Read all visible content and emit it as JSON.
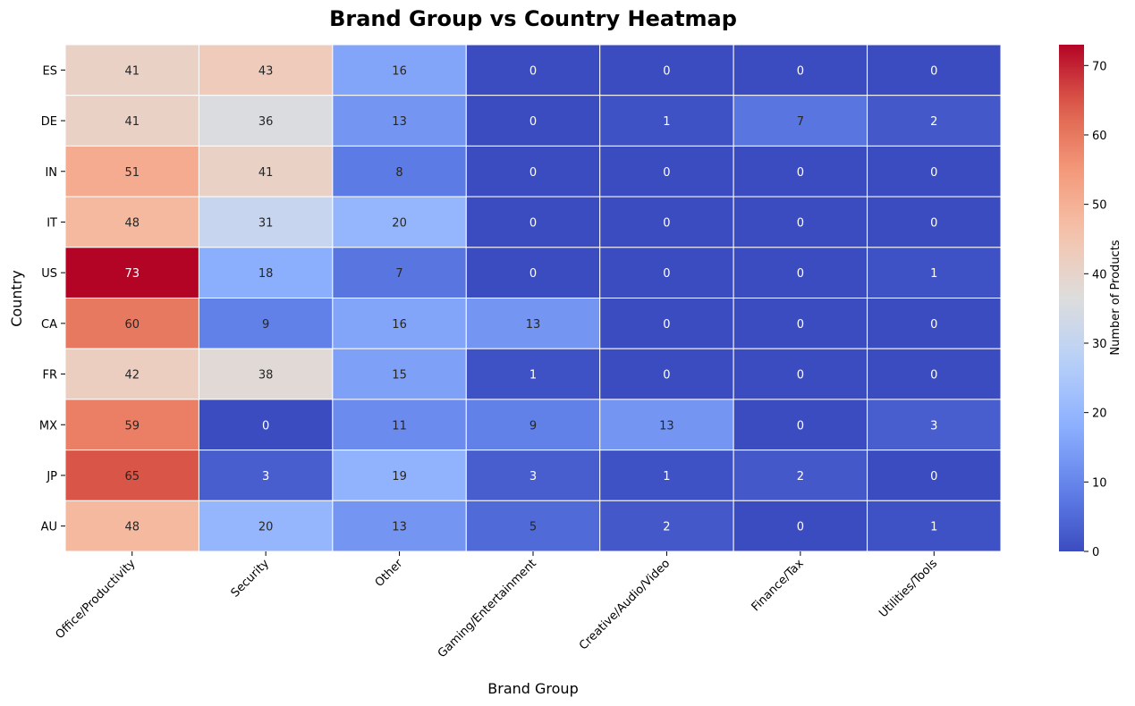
{
  "chart_data": {
    "type": "heatmap",
    "title": "Brand Group vs Country Heatmap",
    "xlabel": "Brand Group",
    "ylabel": "Country",
    "x_categories": [
      "Office/Productivity",
      "Security",
      "Other",
      "Gaming/Entertainment",
      "Creative/Audio/Video",
      "Finance/Tax",
      "Utilities/Tools"
    ],
    "y_categories": [
      "ES",
      "DE",
      "IN",
      "IT",
      "US",
      "CA",
      "FR",
      "MX",
      "JP",
      "AU"
    ],
    "values": [
      [
        41,
        43,
        16,
        0,
        0,
        0,
        0
      ],
      [
        41,
        36,
        13,
        0,
        1,
        7,
        2
      ],
      [
        51,
        41,
        8,
        0,
        0,
        0,
        0
      ],
      [
        48,
        31,
        20,
        0,
        0,
        0,
        0
      ],
      [
        73,
        18,
        7,
        0,
        0,
        0,
        1
      ],
      [
        60,
        9,
        16,
        13,
        0,
        0,
        0
      ],
      [
        42,
        38,
        15,
        1,
        0,
        0,
        0
      ],
      [
        59,
        0,
        11,
        9,
        13,
        0,
        3
      ],
      [
        65,
        3,
        19,
        3,
        1,
        2,
        0
      ],
      [
        48,
        20,
        13,
        5,
        2,
        0,
        1
      ]
    ],
    "colormap": "coolwarm",
    "vmin": 0,
    "vmax": 73,
    "colorbar": {
      "label": "Number of Products",
      "ticks": [
        0,
        10,
        20,
        30,
        40,
        50,
        60,
        70
      ]
    },
    "annotate": true,
    "grid_lines": "white"
  }
}
